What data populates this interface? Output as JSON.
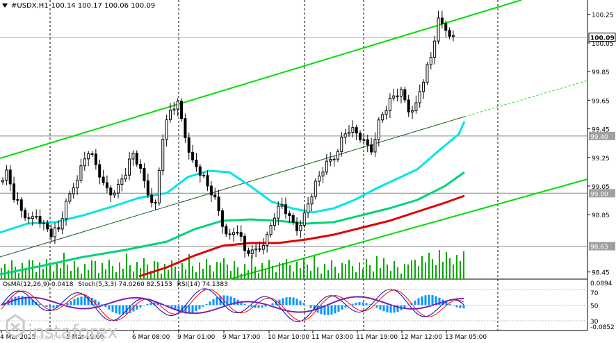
{
  "header": {
    "symbol": "#USDX,H1",
    "ohlc": "100.14 100.17 100.06 100.09"
  },
  "price_labels": [
    "100.25",
    "100.05",
    "99.85",
    "99.65",
    "99.45",
    "99.25",
    "99.05",
    "98.85",
    "98.45"
  ],
  "hline_labels": [
    {
      "text": "99.40",
      "value": 99.4
    },
    {
      "text": "99.00",
      "value": 99.0
    },
    {
      "text": "98.63",
      "value": 98.63
    }
  ],
  "current_price": {
    "text": "100.09",
    "value": 100.09
  },
  "time_labels": [
    "4 Mar 2025",
    "5 Mar 15:00",
    "6 Mar 08:00",
    "9 Mar 01:00",
    "9 Mar 17:00",
    "10 Mar 10:00",
    "11 Mar 03:00",
    "11 Mar 19:00",
    "12 Mar 12:00",
    "13 Mar 05:00"
  ],
  "oscillator": {
    "osma": "OsMA(12,26,9) 0.0418",
    "stoch": "Stoch(5,3,3) 74.0260 82.5153",
    "rsi": "RSI(14) 74.1383",
    "labels": [
      "0.0894",
      "70",
      "50",
      "30",
      "-0.0852"
    ]
  },
  "watermark": {
    "brand": "instaforex",
    "tagline": "Instant Forex Trading"
  },
  "colors": {
    "background": "#ffffff",
    "candles": "#000000",
    "channel": "#00dd00",
    "ma_fast": "#00e5e5",
    "ma_mid": "#00d27a",
    "ma_slow": "#e00000",
    "volume": "#00aa00",
    "hist": "#0095ff",
    "stoch_main": "#0000b0",
    "stoch_signal": "#ff0000",
    "rsi": "#7a1fb0"
  },
  "chart_data": {
    "type": "candlestick",
    "symbol": "#USDX",
    "timeframe": "H1",
    "last_bar": {
      "open": 100.14,
      "high": 100.17,
      "low": 100.06,
      "close": 100.09
    },
    "ylim": [
      98.4,
      100.35
    ],
    "price_ticks": [
      100.25,
      100.05,
      99.85,
      99.65,
      99.45,
      99.25,
      99.05,
      98.85,
      98.45
    ],
    "horizontal_levels": [
      99.4,
      99.0,
      98.63
    ],
    "indicators": {
      "OsMA(12,26,9)": 0.0418,
      "Stoch(5,3,3)": [
        74.026,
        82.5153
      ],
      "RSI(14)": 74.1383
    },
    "close_path": [
      [
        0,
        99.08
      ],
      [
        1,
        99.15
      ],
      [
        2,
        98.98
      ],
      [
        3,
        98.88
      ],
      [
        4,
        98.8
      ],
      [
        5,
        98.85
      ],
      [
        6,
        98.78
      ],
      [
        7,
        98.72
      ],
      [
        8,
        98.75
      ],
      [
        9,
        98.92
      ],
      [
        10,
        99.05
      ],
      [
        11,
        99.18
      ],
      [
        12,
        99.3
      ],
      [
        13,
        99.2
      ],
      [
        14,
        99.05
      ],
      [
        15,
        99.0
      ],
      [
        16,
        99.05
      ],
      [
        17,
        99.15
      ],
      [
        18,
        99.28
      ],
      [
        19,
        99.15
      ],
      [
        20,
        99.0
      ],
      [
        21,
        98.92
      ],
      [
        22,
        99.4
      ],
      [
        23,
        99.58
      ],
      [
        24,
        99.62
      ],
      [
        25,
        99.4
      ],
      [
        26,
        99.22
      ],
      [
        27,
        99.15
      ],
      [
        28,
        99.05
      ],
      [
        29,
        98.95
      ],
      [
        30,
        98.78
      ],
      [
        31,
        98.7
      ],
      [
        32,
        98.75
      ],
      [
        33,
        98.6
      ],
      [
        34,
        98.58
      ],
      [
        35,
        98.62
      ],
      [
        36,
        98.7
      ],
      [
        37,
        98.85
      ],
      [
        38,
        98.92
      ],
      [
        39,
        98.82
      ],
      [
        40,
        98.75
      ],
      [
        41,
        98.85
      ],
      [
        42,
        99.0
      ],
      [
        43,
        99.12
      ],
      [
        44,
        99.2
      ],
      [
        45,
        99.25
      ],
      [
        46,
        99.38
      ],
      [
        47,
        99.45
      ],
      [
        48,
        99.42
      ],
      [
        49,
        99.35
      ],
      [
        50,
        99.3
      ],
      [
        51,
        99.5
      ],
      [
        52,
        99.6
      ],
      [
        53,
        99.68
      ],
      [
        54,
        99.7
      ],
      [
        55,
        99.58
      ],
      [
        56,
        99.62
      ],
      [
        57,
        99.8
      ],
      [
        58,
        99.95
      ],
      [
        59,
        100.2
      ],
      [
        60,
        100.15
      ],
      [
        61,
        100.09
      ]
    ]
  }
}
